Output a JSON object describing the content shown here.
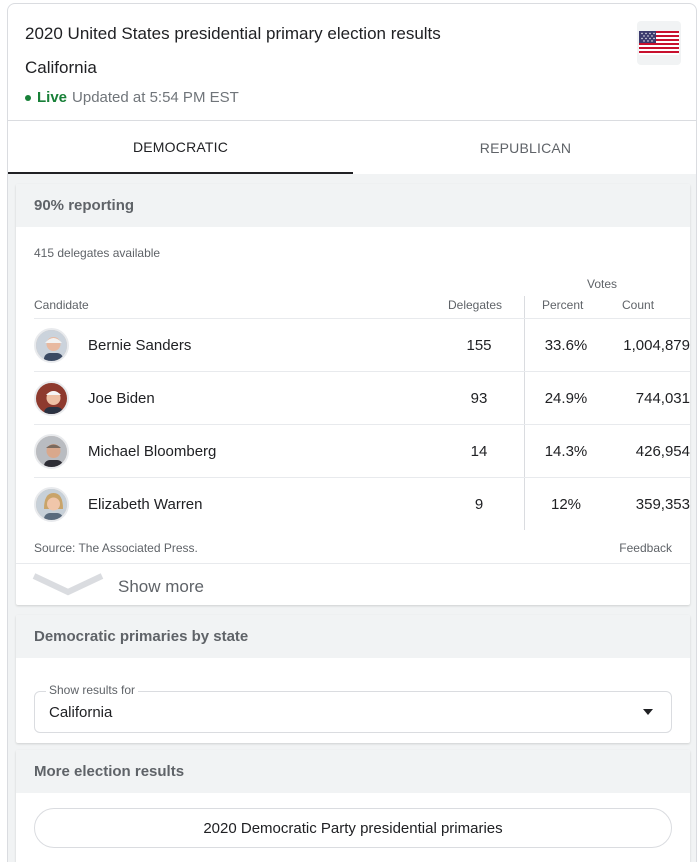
{
  "header": {
    "title": "2020 United States presidential primary election results",
    "state": "California",
    "live_label": "Live",
    "updated_text": "Updated at 5:54 PM EST",
    "flag_icon": "us-flag-icon"
  },
  "tabs": [
    {
      "label": "DEMOCRATIC",
      "active": true
    },
    {
      "label": "REPUBLICAN",
      "active": false
    }
  ],
  "results": {
    "reporting": "90% reporting",
    "delegates_available": "415 delegates available",
    "votes_group_label": "Votes",
    "columns": {
      "candidate": "Candidate",
      "delegates": "Delegates",
      "percent": "Percent",
      "count": "Count"
    },
    "rows": [
      {
        "name": "Bernie Sanders",
        "delegates": "155",
        "percent": "33.6%",
        "count": "1,004,879"
      },
      {
        "name": "Joe Biden",
        "delegates": "93",
        "percent": "24.9%",
        "count": "744,031"
      },
      {
        "name": "Michael Bloomberg",
        "delegates": "14",
        "percent": "14.3%",
        "count": "426,954"
      },
      {
        "name": "Elizabeth Warren",
        "delegates": "9",
        "percent": "12%",
        "count": "359,353"
      }
    ],
    "source": "Source: The Associated Press.",
    "feedback": "Feedback",
    "show_more": "Show more"
  },
  "by_state": {
    "heading": "Democratic primaries by state",
    "select_label": "Show results for",
    "select_value": "California"
  },
  "more_results": {
    "heading": "More election results",
    "link": "2020 Democratic Party presidential primaries"
  },
  "colors": {
    "live_green": "#188038",
    "panel_gray": "#f1f3f4",
    "text_secondary": "#5f6368"
  }
}
